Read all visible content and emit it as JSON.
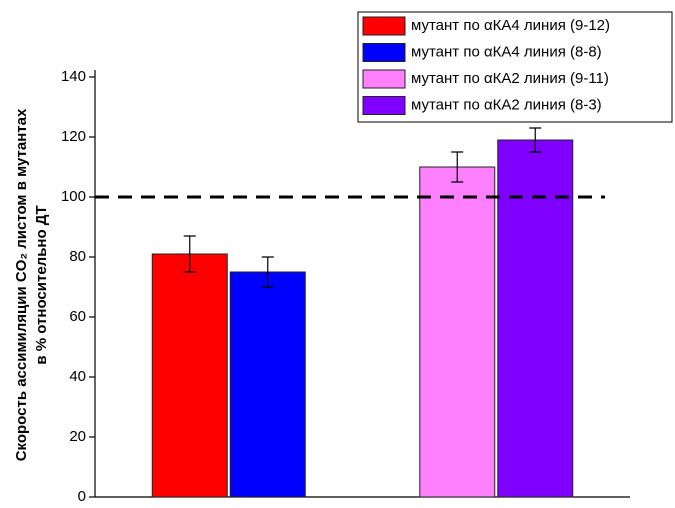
{
  "chart_data": {
    "type": "bar",
    "y_label": [
      "Скорость ассимиляции CO₂ листом в мутантах",
      "в % относительно ДТ"
    ],
    "categories": [
      null,
      null
    ],
    "series": [
      {
        "name": "мутант по αКА4 линия (9-12)",
        "color": "#ff0000",
        "values": [
          81,
          null
        ],
        "errors": [
          6,
          null
        ]
      },
      {
        "name": "мутант по αКА4 линия (8-8)",
        "color": "#0000ff",
        "values": [
          75,
          null
        ],
        "errors": [
          5,
          null
        ]
      },
      {
        "name": "мутант по αКА2 линия (9-11)",
        "color": "#ff80ff",
        "values": [
          null,
          110
        ],
        "errors": [
          null,
          5
        ]
      },
      {
        "name": "мутант по αКА2 линия (8-3)",
        "color": "#8000ff",
        "values": [
          null,
          119
        ],
        "errors": [
          null,
          4
        ]
      }
    ],
    "ref_line": 100,
    "ylim": [
      0,
      140
    ],
    "yticks": [
      0,
      20,
      40,
      60,
      80,
      100,
      120,
      140
    ],
    "legend": "top-right"
  }
}
